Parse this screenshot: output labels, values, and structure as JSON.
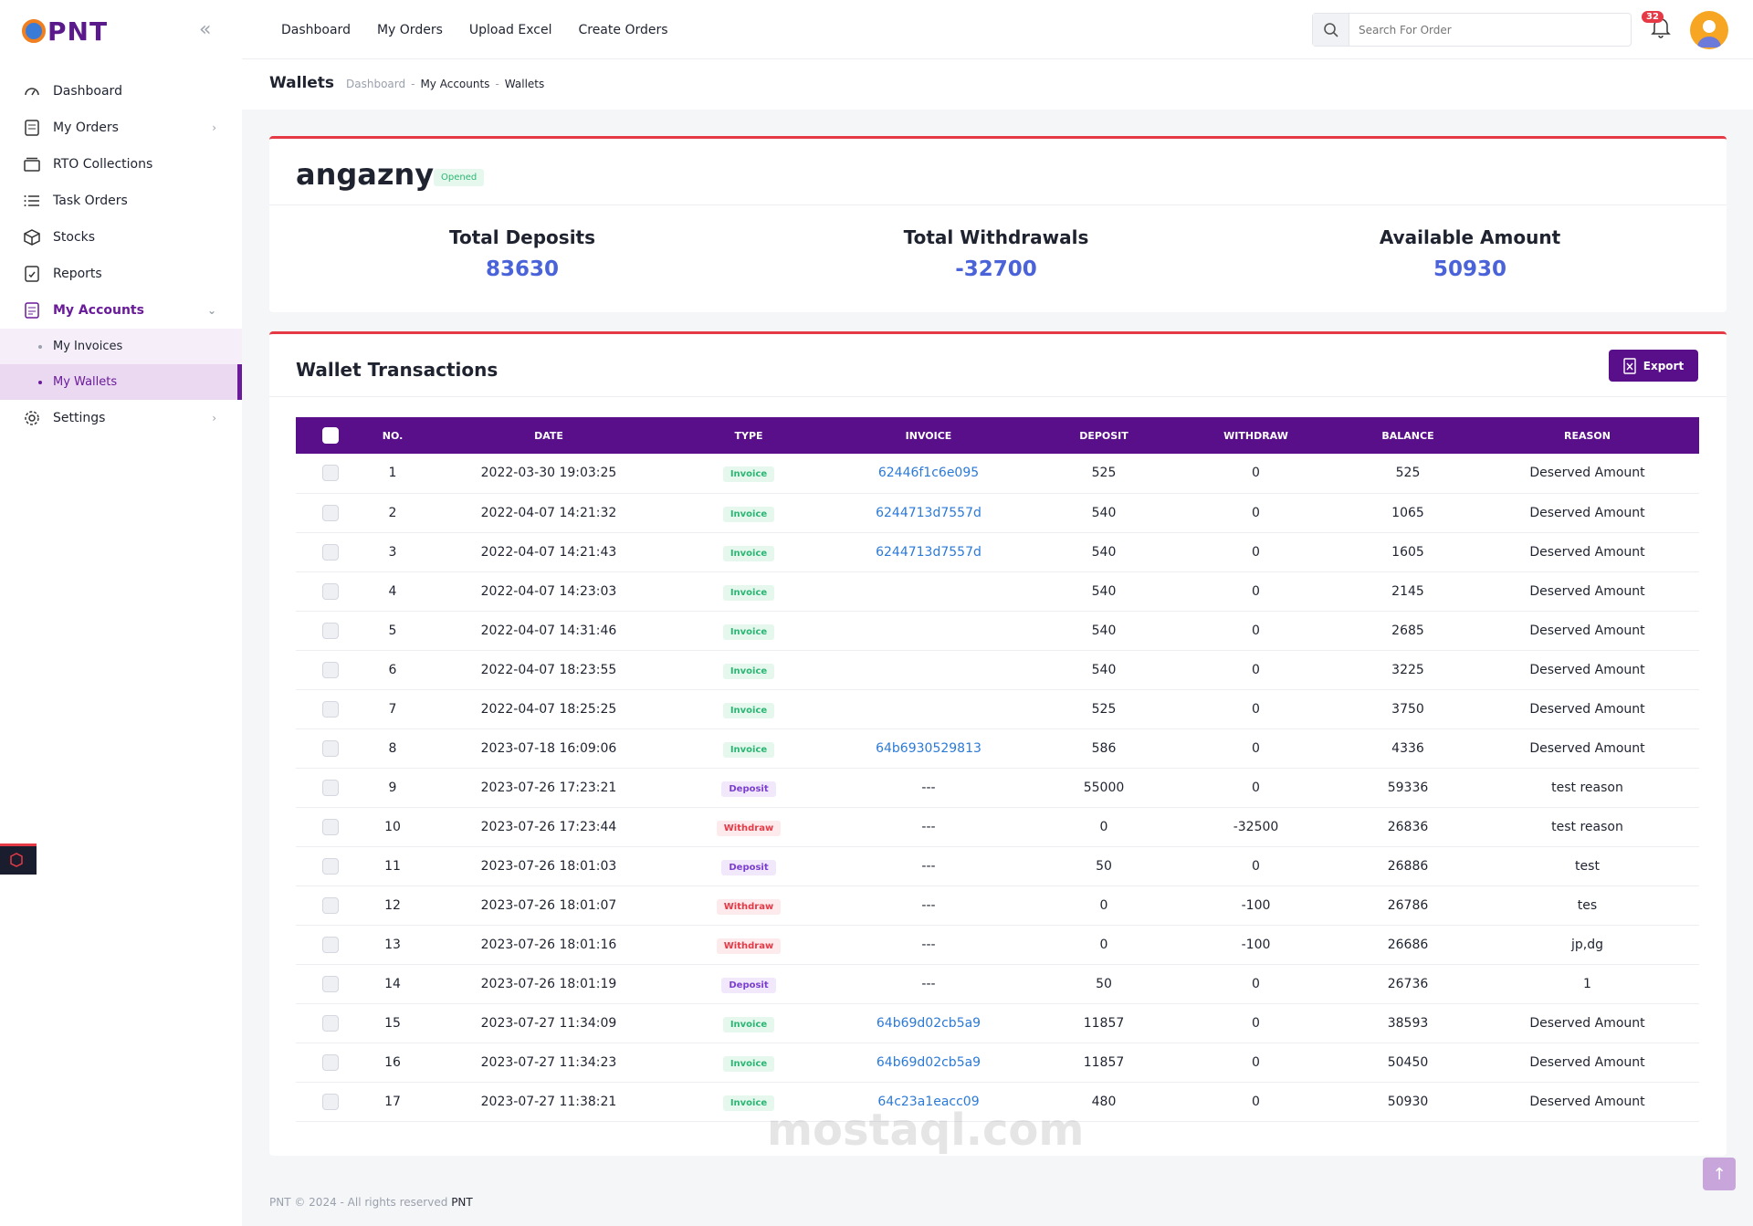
{
  "app": {
    "logo_text": "PNT"
  },
  "sidebar": {
    "items": [
      {
        "label": "Dashboard",
        "icon": "dashboard-icon"
      },
      {
        "label": "My Orders",
        "icon": "orders-icon"
      },
      {
        "label": "RTO Collections",
        "icon": "collections-icon"
      },
      {
        "label": "Task Orders",
        "icon": "list-icon"
      },
      {
        "label": "Stocks",
        "icon": "box-icon"
      },
      {
        "label": "Reports",
        "icon": "report-icon"
      },
      {
        "label": "My Accounts",
        "icon": "accounts-icon"
      },
      {
        "label": "My Invoices"
      },
      {
        "label": "My Wallets"
      },
      {
        "label": "Settings",
        "icon": "gear-icon"
      }
    ]
  },
  "topnav": {
    "items": [
      "Dashboard",
      "My Orders",
      "Upload Excel",
      "Create Orders"
    ]
  },
  "search": {
    "placeholder": "Search For Order"
  },
  "notifications": {
    "count": "32"
  },
  "page": {
    "title": "Wallets",
    "breadcrumb": [
      "Dashboard",
      "-",
      "My Accounts",
      "-",
      "Wallets"
    ]
  },
  "account": {
    "name": "angazny",
    "status": "Opened",
    "stats": [
      {
        "label": "Total Deposits",
        "value": "83630"
      },
      {
        "label": "Total Withdrawals",
        "value": "-32700"
      },
      {
        "label": "Available Amount",
        "value": "50930"
      }
    ]
  },
  "transactions": {
    "title": "Wallet Transactions",
    "export_label": "Export",
    "columns": [
      "NO.",
      "DATE",
      "TYPE",
      "INVOICE",
      "DEPOSIT",
      "WITHDRAW",
      "BALANCE",
      "REASON"
    ],
    "rows": [
      {
        "no": "1",
        "date": "2022-03-30 19:03:25",
        "type": "Invoice",
        "invoice": "62446f1c6e095",
        "deposit": "525",
        "withdraw": "0",
        "balance": "525",
        "reason": "Deserved Amount"
      },
      {
        "no": "2",
        "date": "2022-04-07 14:21:32",
        "type": "Invoice",
        "invoice": "6244713d7557d",
        "deposit": "540",
        "withdraw": "0",
        "balance": "1065",
        "reason": "Deserved Amount"
      },
      {
        "no": "3",
        "date": "2022-04-07 14:21:43",
        "type": "Invoice",
        "invoice": "6244713d7557d",
        "deposit": "540",
        "withdraw": "0",
        "balance": "1605",
        "reason": "Deserved Amount"
      },
      {
        "no": "4",
        "date": "2022-04-07 14:23:03",
        "type": "Invoice",
        "invoice": "",
        "deposit": "540",
        "withdraw": "0",
        "balance": "2145",
        "reason": "Deserved Amount"
      },
      {
        "no": "5",
        "date": "2022-04-07 14:31:46",
        "type": "Invoice",
        "invoice": "",
        "deposit": "540",
        "withdraw": "0",
        "balance": "2685",
        "reason": "Deserved Amount"
      },
      {
        "no": "6",
        "date": "2022-04-07 18:23:55",
        "type": "Invoice",
        "invoice": "",
        "deposit": "540",
        "withdraw": "0",
        "balance": "3225",
        "reason": "Deserved Amount"
      },
      {
        "no": "7",
        "date": "2022-04-07 18:25:25",
        "type": "Invoice",
        "invoice": "",
        "deposit": "525",
        "withdraw": "0",
        "balance": "3750",
        "reason": "Deserved Amount"
      },
      {
        "no": "8",
        "date": "2023-07-18 16:09:06",
        "type": "Invoice",
        "invoice": "64b6930529813",
        "deposit": "586",
        "withdraw": "0",
        "balance": "4336",
        "reason": "Deserved Amount"
      },
      {
        "no": "9",
        "date": "2023-07-26 17:23:21",
        "type": "Deposit",
        "invoice": "---",
        "deposit": "55000",
        "withdraw": "0",
        "balance": "59336",
        "reason": "test reason"
      },
      {
        "no": "10",
        "date": "2023-07-26 17:23:44",
        "type": "Withdraw",
        "invoice": "---",
        "deposit": "0",
        "withdraw": "-32500",
        "balance": "26836",
        "reason": "test reason"
      },
      {
        "no": "11",
        "date": "2023-07-26 18:01:03",
        "type": "Deposit",
        "invoice": "---",
        "deposit": "50",
        "withdraw": "0",
        "balance": "26886",
        "reason": "test"
      },
      {
        "no": "12",
        "date": "2023-07-26 18:01:07",
        "type": "Withdraw",
        "invoice": "---",
        "deposit": "0",
        "withdraw": "-100",
        "balance": "26786",
        "reason": "tes"
      },
      {
        "no": "13",
        "date": "2023-07-26 18:01:16",
        "type": "Withdraw",
        "invoice": "---",
        "deposit": "0",
        "withdraw": "-100",
        "balance": "26686",
        "reason": "jp,dg"
      },
      {
        "no": "14",
        "date": "2023-07-26 18:01:19",
        "type": "Deposit",
        "invoice": "---",
        "deposit": "50",
        "withdraw": "0",
        "balance": "26736",
        "reason": "1"
      },
      {
        "no": "15",
        "date": "2023-07-27 11:34:09",
        "type": "Invoice",
        "invoice": "64b69d02cb5a9",
        "deposit": "11857",
        "withdraw": "0",
        "balance": "38593",
        "reason": "Deserved Amount"
      },
      {
        "no": "16",
        "date": "2023-07-27 11:34:23",
        "type": "Invoice",
        "invoice": "64b69d02cb5a9",
        "deposit": "11857",
        "withdraw": "0",
        "balance": "50450",
        "reason": "Deserved Amount"
      },
      {
        "no": "17",
        "date": "2023-07-27 11:38:21",
        "type": "Invoice",
        "invoice": "64c23a1eacc09",
        "deposit": "480",
        "withdraw": "0",
        "balance": "50930",
        "reason": "Deserved Amount"
      }
    ]
  },
  "footer": {
    "text": "PNT © 2024 - All rights reserved",
    "brand": "PNT"
  },
  "watermark": {
    "text": "mostaql.com"
  },
  "colors": {
    "primary": "#5a0f8a",
    "accent_red": "#e63946",
    "stat_value": "#4b63d8"
  }
}
